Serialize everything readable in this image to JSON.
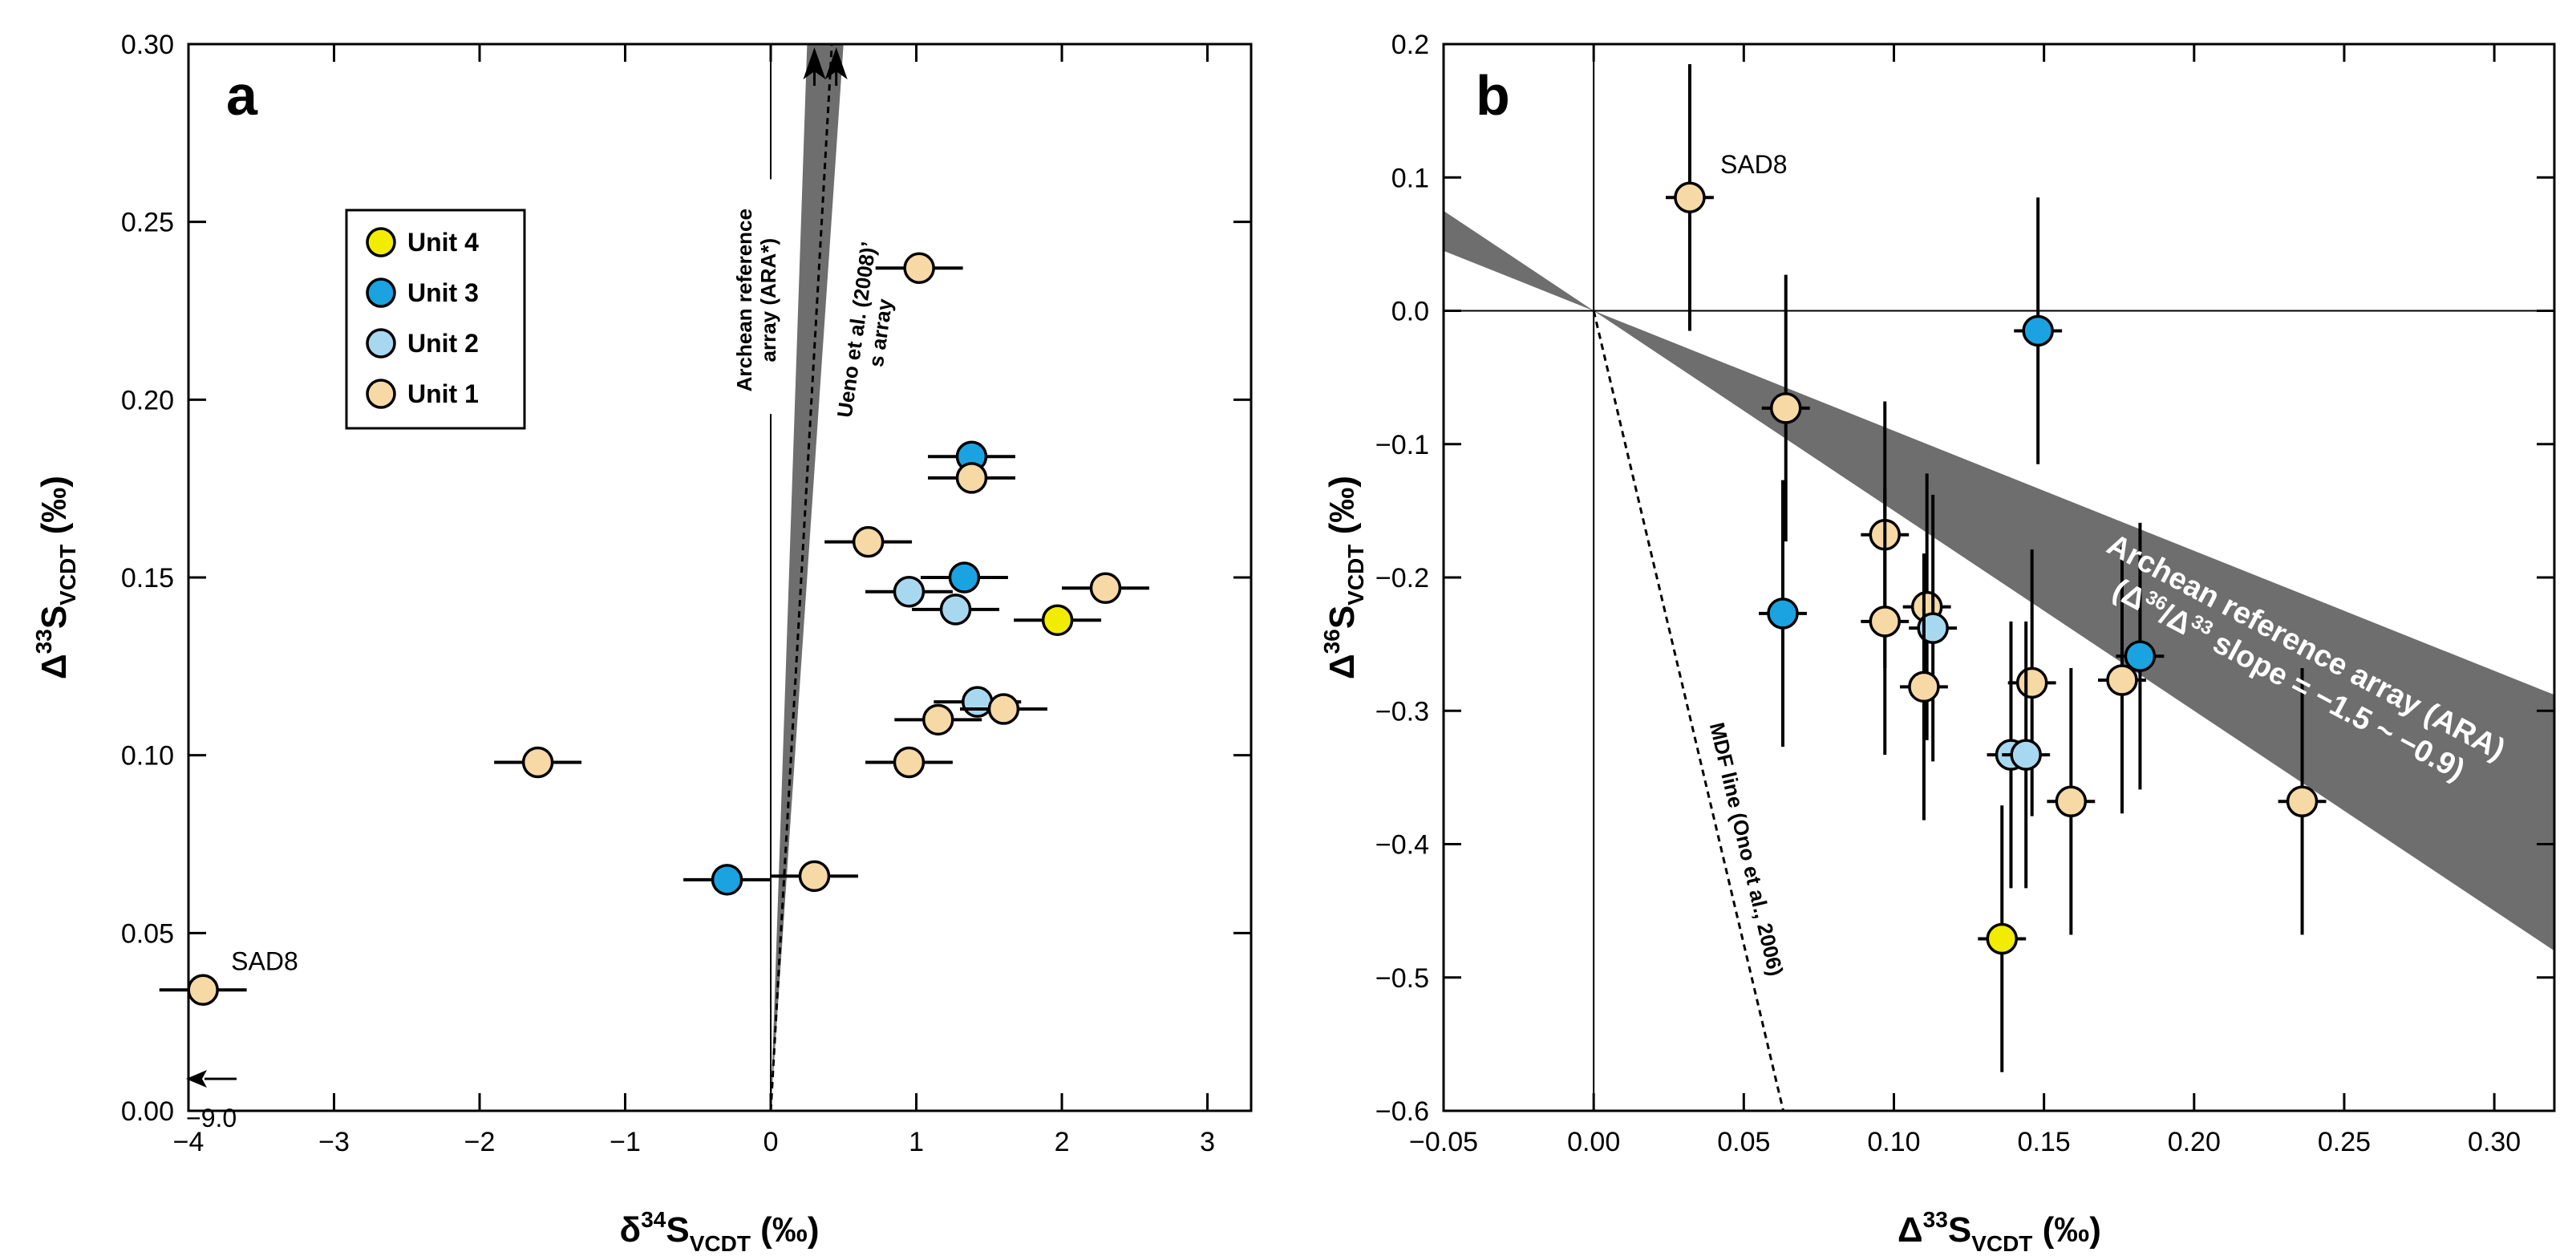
{
  "figure": {
    "background": "#ffffff",
    "band_color": "#6e6e6e"
  },
  "colors": {
    "Unit 4": "#f2ec00",
    "Unit 3": "#1aa3e0",
    "Unit 2": "#a8d8f0",
    "Unit 1": "#f7d9a6"
  },
  "chart_data": [
    {
      "panel": "a",
      "type": "scatter",
      "xlabel": {
        "main": "δ",
        "sup": "34",
        "base": "S",
        "sub": "VCDT",
        "unit": " (‰)"
      },
      "ylabel": {
        "main": "Δ",
        "sup": "33",
        "base": "S",
        "sub": "VCDT",
        "unit": " (‰)"
      },
      "xlim": [
        -4,
        3.3
      ],
      "ylim": [
        0,
        0.3
      ],
      "xticks": [
        -4,
        -3,
        -2,
        -1,
        0,
        1,
        2,
        3
      ],
      "xtick_labels": [
        "−4",
        "−3",
        "−2",
        "−1",
        "0",
        "1",
        "2",
        "3"
      ],
      "yticks": [
        0,
        0.05,
        0.1,
        0.15,
        0.2,
        0.25,
        0.3
      ],
      "ytick_labels": [
        "0.00",
        "0.05",
        "0.10",
        "0.15",
        "0.20",
        "0.25",
        "0.30"
      ],
      "legend": [
        "Unit 4",
        "Unit 3",
        "Unit 2",
        "Unit 1"
      ],
      "points": [
        {
          "unit": "Unit 1",
          "x": 1.02,
          "y": 0.237,
          "xerr": 0.3,
          "yerr": 0.004
        },
        {
          "unit": "Unit 3",
          "x": 1.38,
          "y": 0.184,
          "xerr": 0.3,
          "yerr": 0.004
        },
        {
          "unit": "Unit 1",
          "x": 1.38,
          "y": 0.178,
          "xerr": 0.3,
          "yerr": 0.004
        },
        {
          "unit": "Unit 1",
          "x": 0.67,
          "y": 0.16,
          "xerr": 0.3,
          "yerr": 0.004
        },
        {
          "unit": "Unit 3",
          "x": 1.33,
          "y": 0.15,
          "xerr": 0.3,
          "yerr": 0.004
        },
        {
          "unit": "Unit 1",
          "x": 2.3,
          "y": 0.147,
          "xerr": 0.3,
          "yerr": 0.004
        },
        {
          "unit": "Unit 2",
          "x": 0.95,
          "y": 0.146,
          "xerr": 0.3,
          "yerr": 0.004
        },
        {
          "unit": "Unit 2",
          "x": 1.27,
          "y": 0.141,
          "xerr": 0.3,
          "yerr": 0.004
        },
        {
          "unit": "Unit 4",
          "x": 1.97,
          "y": 0.138,
          "xerr": 0.3,
          "yerr": 0.004
        },
        {
          "unit": "Unit 2",
          "x": 1.42,
          "y": 0.115,
          "xerr": 0.3,
          "yerr": 0.004
        },
        {
          "unit": "Unit 1",
          "x": 1.6,
          "y": 0.113,
          "xerr": 0.3,
          "yerr": 0.004
        },
        {
          "unit": "Unit 1",
          "x": 1.15,
          "y": 0.11,
          "xerr": 0.3,
          "yerr": 0.004
        },
        {
          "unit": "Unit 1",
          "x": 0.95,
          "y": 0.098,
          "xerr": 0.3,
          "yerr": 0.004
        },
        {
          "unit": "Unit 1",
          "x": -1.6,
          "y": 0.098,
          "xerr": 0.3,
          "yerr": 0.004
        },
        {
          "unit": "Unit 3",
          "x": -0.3,
          "y": 0.065,
          "xerr": 0.3,
          "yerr": 0.004
        },
        {
          "unit": "Unit 1",
          "x": 0.3,
          "y": 0.066,
          "xerr": 0.3,
          "yerr": 0.004
        },
        {
          "unit": "Unit 1",
          "x": -3.9,
          "y": 0.034,
          "xerr": 0.3,
          "yerr": 0.004
        }
      ],
      "annotations": {
        "sad8": "SAD8",
        "off_scale_value": "−9.0",
        "ara_label_line1": "Archean reference",
        "ara_label_line2": "array (ARA*)",
        "ueno_label_line1": "Ueno et al. (2008)’",
        "ueno_label_line2": "s array"
      },
      "ara_band": {
        "origin": [
          0,
          0
        ],
        "top_x": [
          0.25,
          0.5
        ],
        "top_y": 0.3
      },
      "ueno_line": {
        "from": [
          0,
          0
        ],
        "to": [
          0.42,
          0.3
        ]
      }
    },
    {
      "panel": "b",
      "type": "scatter",
      "xlabel": {
        "main": "Δ",
        "sup": "33",
        "base": "S",
        "sub": "VCDT",
        "unit": " (‰)"
      },
      "ylabel": {
        "main": "Δ",
        "sup": "36",
        "base": "S",
        "sub": "VCDT",
        "unit": " (‰)"
      },
      "xlim": [
        -0.05,
        0.32
      ],
      "ylim": [
        -0.6,
        0.2
      ],
      "xticks": [
        -0.05,
        0,
        0.05,
        0.1,
        0.15,
        0.2,
        0.25,
        0.3
      ],
      "xtick_labels": [
        "−0.05",
        "0.00",
        "0.05",
        "0.10",
        "0.15",
        "0.20",
        "0.25",
        "0.30"
      ],
      "yticks": [
        -0.6,
        -0.5,
        -0.4,
        -0.3,
        -0.2,
        -0.1,
        0,
        0.1,
        0.2
      ],
      "ytick_labels": [
        "−0.6",
        "−0.5",
        "−0.4",
        "−0.3",
        "−0.2",
        "−0.1",
        "0.0",
        "0.1",
        "0.2"
      ],
      "points": [
        {
          "unit": "Unit 1",
          "x": 0.032,
          "y": 0.085,
          "xerr": 0.008,
          "yerr": 0.1
        },
        {
          "unit": "Unit 3",
          "x": 0.148,
          "y": -0.015,
          "xerr": 0.008,
          "yerr": 0.1
        },
        {
          "unit": "Unit 1",
          "x": 0.064,
          "y": -0.073,
          "xerr": 0.008,
          "yerr": 0.1
        },
        {
          "unit": "Unit 1",
          "x": 0.097,
          "y": -0.168,
          "xerr": 0.008,
          "yerr": 0.1
        },
        {
          "unit": "Unit 3",
          "x": 0.063,
          "y": -0.227,
          "xerr": 0.008,
          "yerr": 0.1
        },
        {
          "unit": "Unit 1",
          "x": 0.111,
          "y": -0.222,
          "xerr": 0.008,
          "yerr": 0.1
        },
        {
          "unit": "Unit 1",
          "x": 0.097,
          "y": -0.233,
          "xerr": 0.008,
          "yerr": 0.1
        },
        {
          "unit": "Unit 2",
          "x": 0.113,
          "y": -0.238,
          "xerr": 0.008,
          "yerr": 0.1
        },
        {
          "unit": "Unit 3",
          "x": 0.182,
          "y": -0.259,
          "xerr": 0.008,
          "yerr": 0.1
        },
        {
          "unit": "Unit 1",
          "x": 0.176,
          "y": -0.277,
          "xerr": 0.008,
          "yerr": 0.1
        },
        {
          "unit": "Unit 1",
          "x": 0.146,
          "y": -0.279,
          "xerr": 0.008,
          "yerr": 0.1
        },
        {
          "unit": "Unit 1",
          "x": 0.11,
          "y": -0.282,
          "xerr": 0.008,
          "yerr": 0.1
        },
        {
          "unit": "Unit 2",
          "x": 0.139,
          "y": -0.333,
          "xerr": 0.008,
          "yerr": 0.1
        },
        {
          "unit": "Unit 2",
          "x": 0.144,
          "y": -0.333,
          "xerr": 0.008,
          "yerr": 0.1
        },
        {
          "unit": "Unit 1",
          "x": 0.159,
          "y": -0.368,
          "xerr": 0.008,
          "yerr": 0.1
        },
        {
          "unit": "Unit 1",
          "x": 0.236,
          "y": -0.368,
          "xerr": 0.008,
          "yerr": 0.1
        },
        {
          "unit": "Unit 4",
          "x": 0.136,
          "y": -0.471,
          "xerr": 0.008,
          "yerr": 0.1
        }
      ],
      "annotations": {
        "sad8": "SAD8",
        "ara_label_line1": "Archean reference array (ARA)",
        "ara_label_line2_a": "(Δ",
        "ara_label_line2_sup1": "36",
        "ara_label_line2_b": "/Δ",
        "ara_label_line2_sup2": "33",
        "ara_label_line2_c": " slope = −1.5 ~ −0.9)",
        "mdf_label": "MDF line (Ono et al., 2006)"
      },
      "ara_band": {
        "slope_min": -1.5,
        "slope_max": -0.9
      },
      "mdf_line": {
        "slope": -9.5
      }
    }
  ]
}
